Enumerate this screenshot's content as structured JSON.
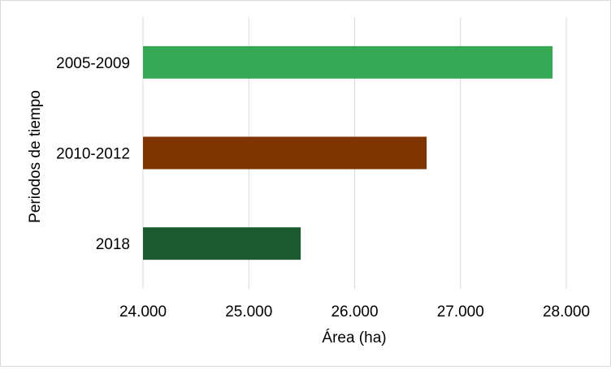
{
  "chart_data": {
    "type": "bar",
    "orientation": "horizontal",
    "title": "",
    "xlabel": "Área (ha)",
    "ylabel": "Periodos de tiempo",
    "categories": [
      "2005-2009",
      "2010-2012",
      "2018"
    ],
    "values": [
      27870,
      26680,
      25490
    ],
    "colors": [
      "#34a853",
      "#7f3500",
      "#1b5a2c"
    ],
    "xlim": [
      24000,
      28000
    ],
    "x_ticks": [
      24000,
      25000,
      26000,
      27000,
      28000
    ],
    "x_tick_labels": [
      "24.000",
      "25.000",
      "26.000",
      "27.000",
      "28.000"
    ],
    "grid": "vertical",
    "legend": "none"
  }
}
